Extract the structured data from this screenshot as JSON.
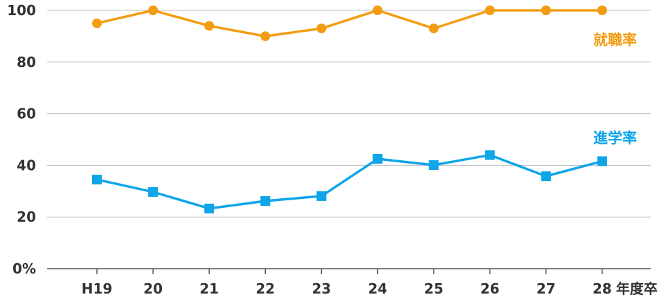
{
  "chart_data": {
    "type": "line",
    "categories": [
      "H19",
      "20",
      "21",
      "22",
      "23",
      "24",
      "25",
      "26",
      "27",
      "28"
    ],
    "x_unit_label": "年度卒",
    "y_ticks": [
      "0%",
      "20",
      "40",
      "60",
      "80",
      "100"
    ],
    "ylim": [
      0,
      100
    ],
    "grid": true,
    "series": [
      {
        "name": "就職率",
        "color": "#F39C12",
        "marker": "circle",
        "values": [
          95,
          100,
          94,
          90,
          93,
          100,
          93,
          100,
          100,
          100
        ]
      },
      {
        "name": "進学率",
        "color": "#0EA5E9",
        "marker": "square",
        "values": [
          34.5,
          29.7,
          23.3,
          26.2,
          28.1,
          42.5,
          40.1,
          44,
          35.8,
          41.6
        ]
      }
    ]
  }
}
